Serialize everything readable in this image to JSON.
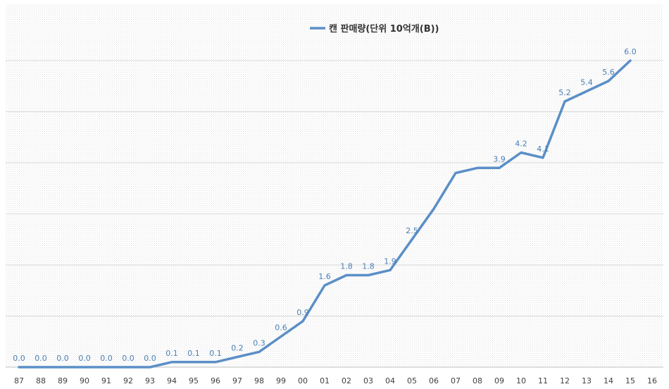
{
  "chart_data": {
    "type": "line",
    "title": "",
    "xlabel": "",
    "ylabel": "",
    "ylim": [
      0,
      6.6
    ],
    "grid": true,
    "legend_position": "top-center",
    "categories": [
      "87",
      "88",
      "89",
      "90",
      "91",
      "92",
      "93",
      "94",
      "95",
      "96",
      "97",
      "98",
      "99",
      "00",
      "01",
      "02",
      "03",
      "04",
      "05",
      "06",
      "07",
      "08",
      "09",
      "10",
      "11",
      "12",
      "13",
      "14",
      "15",
      "16"
    ],
    "series": [
      {
        "name": "캔 판매량(단위 10억개(B))",
        "color": "#5b8fc7",
        "values": [
          0.0,
          0.0,
          0.0,
          0.0,
          0.0,
          0.0,
          0.0,
          0.1,
          0.1,
          0.1,
          0.2,
          0.3,
          0.6,
          0.9,
          1.6,
          1.8,
          1.8,
          1.9,
          2.5,
          3.1,
          3.8,
          3.9,
          3.9,
          4.2,
          4.1,
          5.2,
          5.4,
          5.6,
          6.0,
          null
        ],
        "labels": [
          "0.0",
          "0.0",
          "0.0",
          "0.0",
          "0.0",
          "0.0",
          "0.0",
          "0.1",
          "0.1",
          "0.1",
          "0.2",
          "0.3",
          "0.6",
          "0.9",
          "1.6",
          "1.8",
          "1.8",
          "1.9",
          "2.5",
          "",
          "",
          "",
          "3.9",
          "4.2",
          "4.1",
          "5.2",
          "5.4",
          "5.6",
          "6.0",
          ""
        ]
      }
    ]
  }
}
